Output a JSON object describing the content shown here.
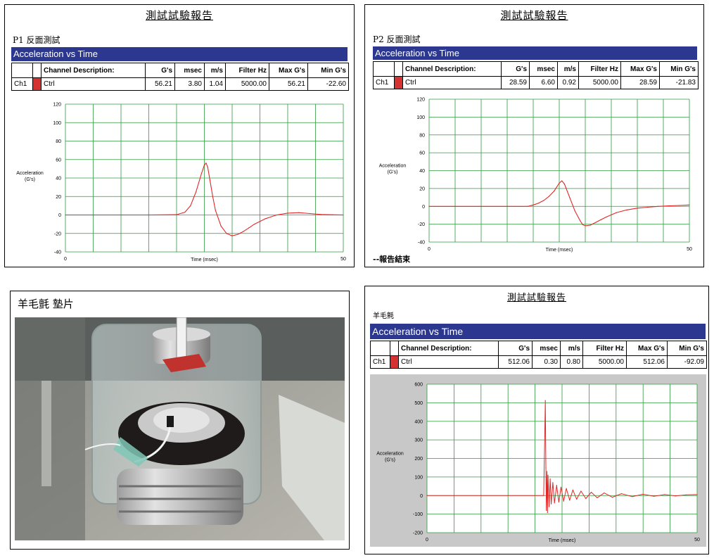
{
  "reports": [
    {
      "report_title": "測試試驗報告",
      "subtitle": "P1 反面測試",
      "header_bar": "Acceleration vs Time",
      "table": {
        "headers": [
          "",
          "",
          "Channel Description:",
          "G's",
          "msec",
          "m/s",
          "Filter Hz",
          "Max G's",
          "Min G's"
        ],
        "row": {
          "channel": "Ch1",
          "description": "Ctrl",
          "gs": "56.21",
          "msec": "3.80",
          "ms": "1.04",
          "filter": "5000.00",
          "max": "56.21",
          "min": "-22.60"
        }
      },
      "ylabel_lines": [
        "Acceleration",
        "(G's)"
      ],
      "xlabel": "Time (msec)",
      "footer_note": ""
    },
    {
      "report_title": "測試試驗報告",
      "subtitle": "P2 反面測試",
      "header_bar": "Acceleration vs Time",
      "table": {
        "headers": [
          "",
          "",
          "Channel Description:",
          "G's",
          "msec",
          "m/s",
          "Filter Hz",
          "Max G's",
          "Min G's"
        ],
        "row": {
          "channel": "Ch1",
          "description": "Ctrl",
          "gs": "28.59",
          "msec": "6.60",
          "ms": "0.92",
          "filter": "5000.00",
          "max": "28.59",
          "min": "-21.83"
        }
      },
      "ylabel_lines": [
        "Acceleration",
        "(G's)"
      ],
      "xlabel": "Time (msec)",
      "footer_note": "--報告結束"
    },
    {
      "report_title": "測試試驗報告",
      "subtitle": "羊毛氈",
      "header_bar": "Acceleration vs Time",
      "table": {
        "headers": [
          "",
          "",
          "Channel Description:",
          "G's",
          "msec",
          "m/s",
          "Filter Hz",
          "Max G's",
          "Min G's"
        ],
        "row": {
          "channel": "Ch1",
          "description": "Ctrl",
          "gs": "512.06",
          "msec": "0.30",
          "ms": "0.80",
          "filter": "5000.00",
          "max": "512.06",
          "min": "-92.09"
        }
      },
      "ylabel_lines": [
        "Acceleration",
        "(G's)"
      ],
      "xlabel": "Time (msec)",
      "footer_note": ""
    }
  ],
  "photo": {
    "title": "羊毛氈 墊片"
  },
  "colors": {
    "header_bar": "#2c3890",
    "grid": "#2e9a3e",
    "trace": "#e02828",
    "swatch": "#d63232",
    "plot_bg": "#c8c8c8"
  },
  "chart_data": [
    {
      "type": "line",
      "title": "Acceleration vs Time",
      "xlabel": "Time (msec)",
      "ylabel": "Acceleration (G's)",
      "xlim": [
        0,
        50
      ],
      "ylim": [
        -40,
        120
      ],
      "xticks": [
        0,
        50
      ],
      "yticks": [
        120,
        100,
        80,
        60,
        40,
        20,
        0,
        -20,
        -40
      ],
      "grid": true,
      "series": [
        {
          "name": "Ctrl",
          "x": [
            0,
            5,
            10,
            15,
            20,
            21.5,
            22.5,
            23.5,
            24.5,
            25,
            25.3,
            25.6,
            26,
            26.5,
            27,
            28,
            29,
            30,
            31,
            32,
            33,
            34,
            36,
            38,
            40,
            42,
            44,
            46,
            48,
            50
          ],
          "y": [
            0,
            0,
            0,
            0,
            0.3,
            3,
            10,
            25,
            45,
            54,
            56.2,
            52,
            38,
            20,
            5,
            -12,
            -20,
            -22.6,
            -21,
            -18,
            -14,
            -10,
            -4,
            0,
            2,
            2.5,
            1.5,
            0.5,
            0.2,
            0
          ]
        }
      ]
    },
    {
      "type": "line",
      "title": "Acceleration vs Time",
      "xlabel": "Time (msec)",
      "ylabel": "Acceleration (G's)",
      "xlim": [
        0,
        50
      ],
      "ylim": [
        -40,
        120
      ],
      "xticks": [
        0,
        50
      ],
      "yticks": [
        120,
        100,
        80,
        60,
        40,
        20,
        0,
        -20,
        -40
      ],
      "grid": true,
      "series": [
        {
          "name": "Ctrl",
          "x": [
            0,
            5,
            10,
            15,
            19,
            20,
            21,
            22,
            23,
            24,
            25,
            25.5,
            26,
            27,
            28,
            29,
            29.5,
            30,
            31,
            32,
            33,
            34,
            36,
            38,
            40,
            42,
            44,
            46,
            48,
            50
          ],
          "y": [
            0,
            0,
            0,
            0,
            0,
            1.5,
            3.5,
            6.5,
            11,
            17,
            26,
            28.6,
            25,
            10,
            -5,
            -16,
            -20.5,
            -21.8,
            -21,
            -18,
            -15,
            -12,
            -7,
            -4,
            -2,
            -1,
            0,
            0.5,
            1,
            1.5
          ]
        }
      ]
    },
    {
      "type": "line",
      "title": "Acceleration vs Time",
      "xlabel": "Time (msec)",
      "ylabel": "Acceleration (G's)",
      "xlim": [
        0,
        50
      ],
      "ylim": [
        -200,
        600
      ],
      "xticks": [
        0,
        50
      ],
      "yticks": [
        600,
        500,
        400,
        300,
        200,
        100,
        0,
        -100,
        -200
      ],
      "grid": true,
      "series": [
        {
          "name": "Ctrl",
          "x": [
            0,
            5,
            10,
            15,
            20,
            21.6,
            21.8,
            21.9,
            22,
            22.1,
            22.2,
            22.3,
            22.4,
            22.6,
            22.8,
            23,
            23.3,
            23.6,
            24,
            24.4,
            24.8,
            25.3,
            25.8,
            26.4,
            27,
            27.7,
            28.5,
            29.4,
            30.4,
            31.5,
            32.8,
            34.3,
            36,
            38,
            40,
            42,
            44,
            46,
            48,
            50
          ],
          "y": [
            0,
            0,
            0,
            0,
            0,
            0,
            320,
            512,
            150,
            -80,
            130,
            -92,
            110,
            -60,
            90,
            -45,
            70,
            -40,
            55,
            -35,
            45,
            -30,
            38,
            -25,
            30,
            -20,
            24,
            -16,
            18,
            -12,
            14,
            -9,
            10,
            -6,
            7,
            -4,
            5,
            -2,
            4,
            5
          ]
        }
      ]
    }
  ]
}
